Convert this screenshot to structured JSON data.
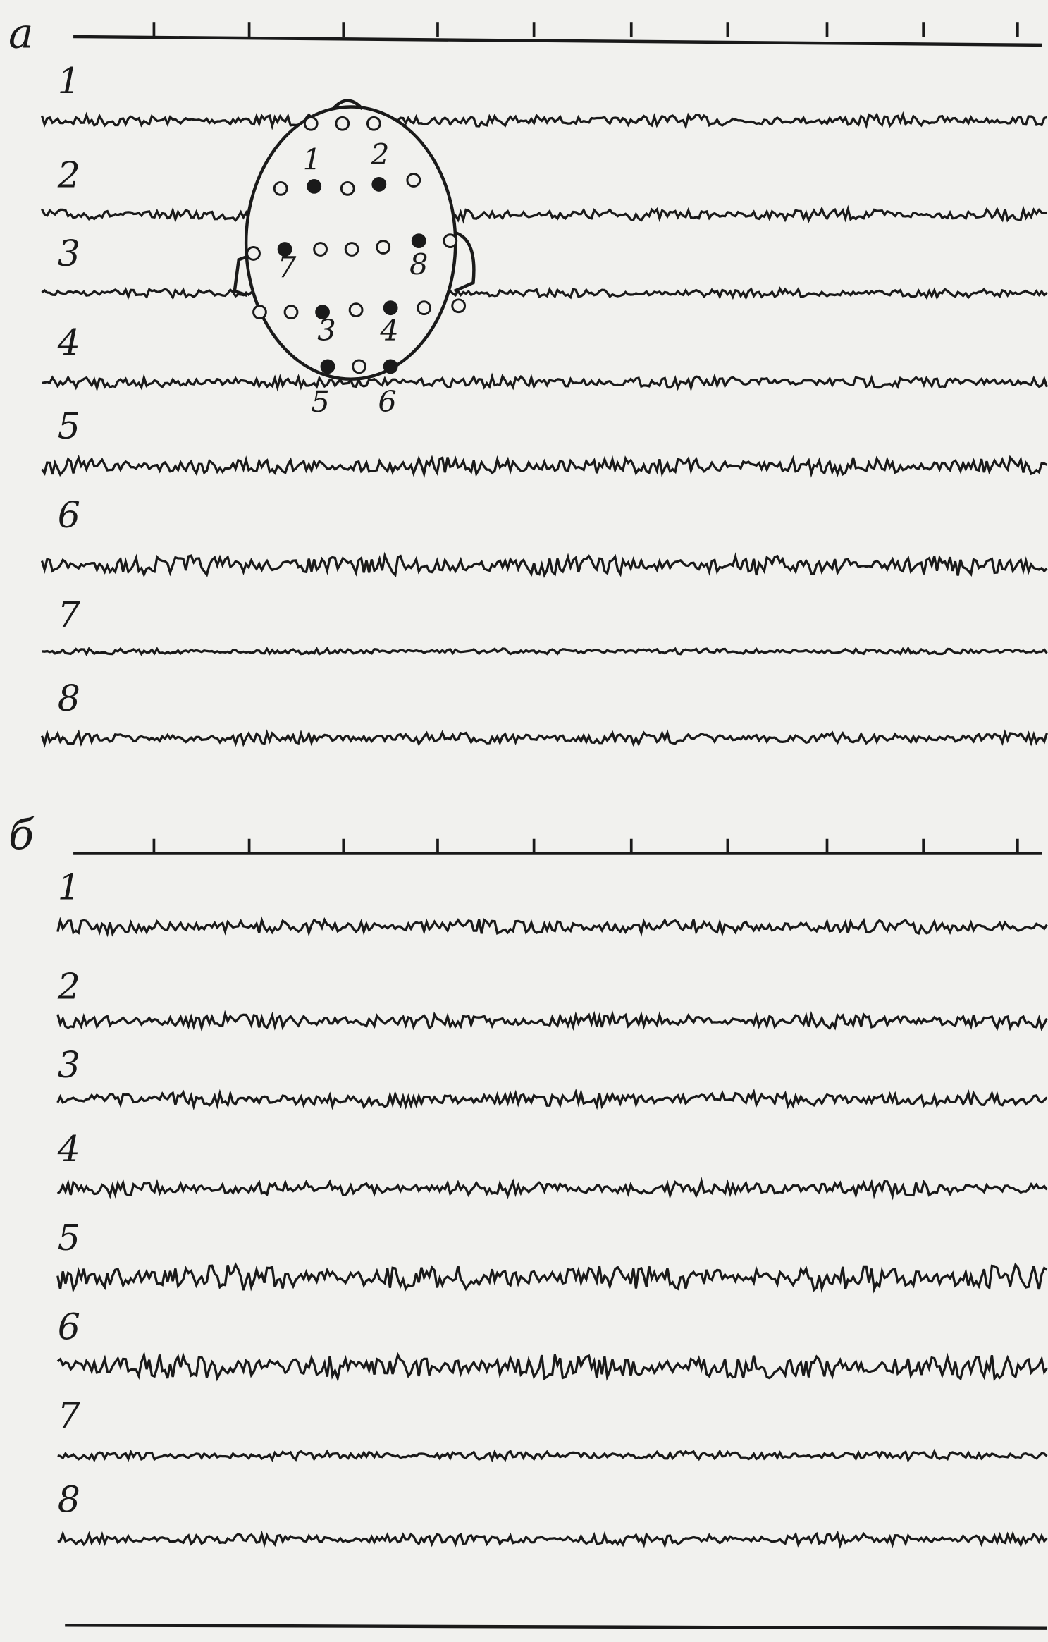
{
  "panels": [
    {
      "label": "а",
      "channels": [
        "1",
        "2",
        "3",
        "4",
        "5",
        "6",
        "7",
        "8"
      ]
    },
    {
      "label": "б",
      "channels": [
        "1",
        "2",
        "3",
        "4",
        "5",
        "6",
        "7",
        "8"
      ]
    }
  ],
  "head_diagram": {
    "electrode_labels": [
      "1",
      "2",
      "3",
      "4",
      "5",
      "6",
      "7",
      "8"
    ]
  }
}
